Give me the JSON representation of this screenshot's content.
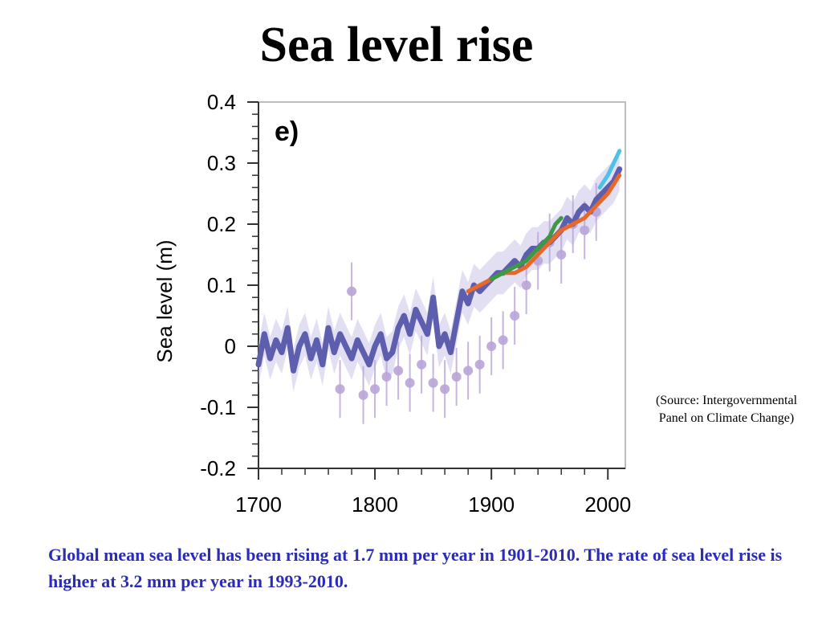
{
  "slide": {
    "title": "Sea level rise",
    "source_note": "(Source: Intergovernmental Panel on Climate Change)",
    "caption": "Global mean sea level has been rising at 1.7 mm per year in 1901-2010. The rate of sea level rise is higher at 3.2 mm per year in 1993-2010."
  },
  "chart_data": {
    "type": "line",
    "panel_label": "e)",
    "title": "",
    "xlabel": "",
    "ylabel": "Sea level (m)",
    "xlim": [
      1700,
      2015
    ],
    "ylim": [
      -0.2,
      0.4
    ],
    "x_ticks": [
      "1700",
      "1800",
      "1900",
      "2000"
    ],
    "y_ticks": [
      "0.4",
      "0.3",
      "0.2",
      "0.1",
      "0",
      "-0.1",
      "-0.2"
    ],
    "grid": false,
    "legend": "none",
    "series": [
      {
        "color": "#5d5fae",
        "x": [
          1700,
          1705,
          1710,
          1715,
          1720,
          1725,
          1730,
          1735,
          1740,
          1745,
          1750,
          1755,
          1760,
          1765,
          1770,
          1775,
          1780,
          1785,
          1790,
          1795,
          1800,
          1805,
          1810,
          1815,
          1820,
          1825,
          1830,
          1835,
          1840,
          1845,
          1850,
          1855,
          1860,
          1865,
          1870,
          1875,
          1880,
          1885,
          1890,
          1895,
          1900,
          1905,
          1910,
          1915,
          1920,
          1925,
          1930,
          1935,
          1940,
          1945,
          1950,
          1955,
          1960,
          1965,
          1970,
          1975,
          1980,
          1985,
          1990,
          1995,
          2000,
          2005,
          2010
        ],
        "values": [
          -0.03,
          0.02,
          -0.02,
          0.01,
          -0.01,
          0.03,
          -0.04,
          0.0,
          0.02,
          -0.02,
          0.01,
          -0.03,
          0.03,
          -0.01,
          0.02,
          0.0,
          -0.02,
          0.01,
          -0.01,
          -0.03,
          0.0,
          0.02,
          -0.02,
          -0.01,
          0.03,
          0.05,
          0.02,
          0.06,
          0.04,
          0.02,
          0.08,
          0.0,
          0.02,
          -0.01,
          0.04,
          0.09,
          0.07,
          0.1,
          0.09,
          0.1,
          0.11,
          0.12,
          0.12,
          0.13,
          0.14,
          0.13,
          0.15,
          0.16,
          0.16,
          0.17,
          0.17,
          0.18,
          0.19,
          0.21,
          0.2,
          0.22,
          0.23,
          0.22,
          0.24,
          0.25,
          0.26,
          0.27,
          0.29
        ]
      },
      {
        "color": "#e8682a",
        "x": [
          1880,
          1890,
          1900,
          1910,
          1920,
          1930,
          1940,
          1950,
          1960,
          1970,
          1980,
          1990,
          2000,
          2010
        ],
        "values": [
          0.09,
          0.1,
          0.11,
          0.12,
          0.12,
          0.13,
          0.15,
          0.17,
          0.19,
          0.2,
          0.21,
          0.23,
          0.25,
          0.28
        ]
      },
      {
        "color": "#3c9a45",
        "x": [
          1900,
          1910,
          1920,
          1930,
          1940,
          1950,
          1955,
          1960
        ],
        "values": [
          0.11,
          0.12,
          0.13,
          0.14,
          0.16,
          0.18,
          0.2,
          0.21
        ]
      },
      {
        "color": "#4fc1e8",
        "x": [
          1993,
          2000,
          2005,
          2010
        ],
        "values": [
          0.26,
          0.28,
          0.3,
          0.32
        ]
      },
      {
        "color": "#b9a4d8",
        "x": [
          1770,
          1780,
          1790,
          1800,
          1810,
          1820,
          1830,
          1840,
          1850,
          1860,
          1870,
          1880,
          1890,
          1900,
          1910,
          1920,
          1930,
          1940,
          1950,
          1960,
          1970,
          1980,
          1990
        ],
        "values": [
          -0.07,
          0.09,
          -0.08,
          -0.07,
          -0.05,
          -0.04,
          -0.06,
          -0.03,
          -0.06,
          -0.07,
          -0.05,
          -0.04,
          -0.03,
          0.0,
          0.01,
          0.05,
          0.1,
          0.14,
          0.17,
          0.15,
          0.2,
          0.19,
          0.22
        ]
      }
    ]
  }
}
